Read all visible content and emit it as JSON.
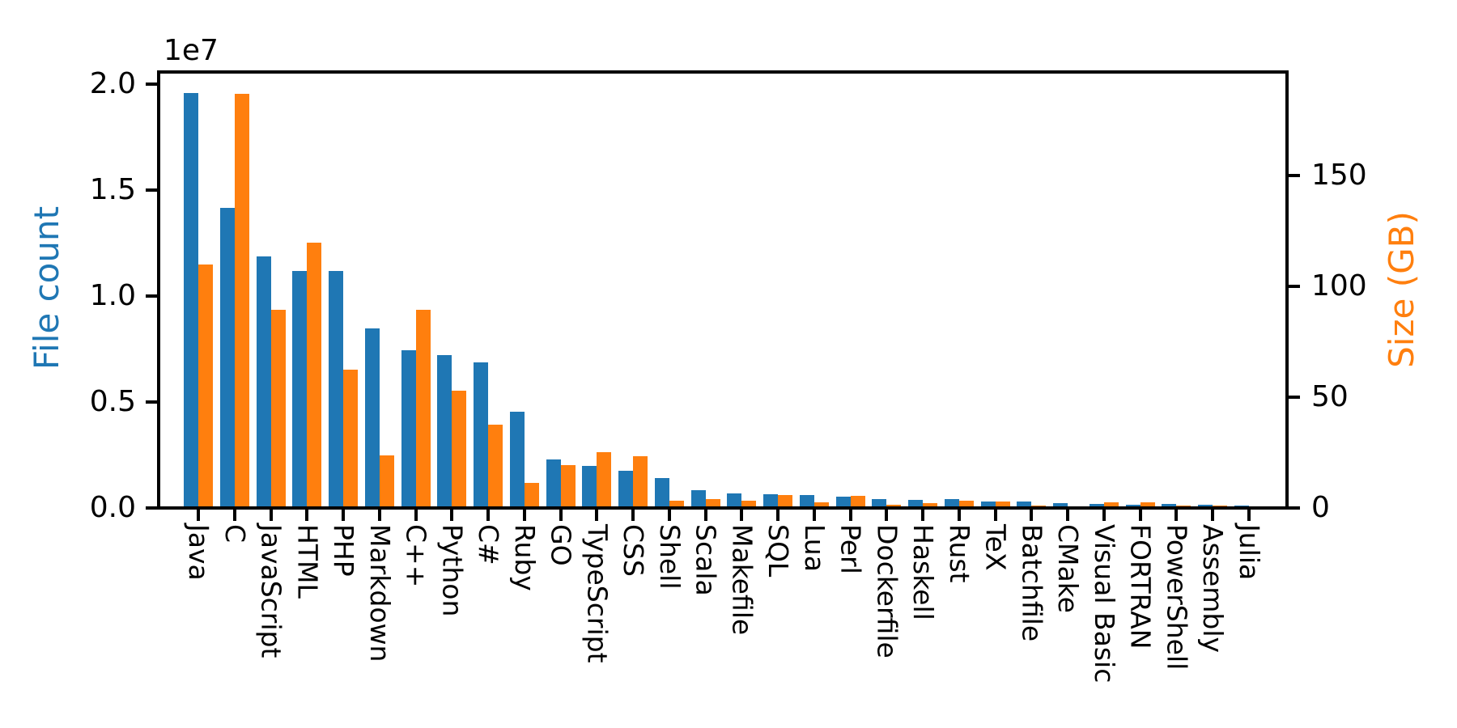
{
  "figure": {
    "background": "#ffffff",
    "offset_label": "1e7",
    "left_axis_label": "File count",
    "right_axis_label": "Size (GB)"
  },
  "chart_data": {
    "type": "bar",
    "title": "",
    "xlabel": "",
    "ylabel_left": "File count",
    "ylabel_right": "Size (GB)",
    "grid": false,
    "legend": false,
    "categories": [
      "Java",
      "C",
      "JavaScript",
      "HTML",
      "PHP",
      "Markdown",
      "C++",
      "Python",
      "C#",
      "Ruby",
      "GO",
      "TypeScript",
      "CSS",
      "Shell",
      "Scala",
      "Makefile",
      "SQL",
      "Lua",
      "Perl",
      "Dockerfile",
      "Haskell",
      "Rust",
      "TeX",
      "Batchfile",
      "CMake",
      "Visual Basic",
      "FORTRAN",
      "PowerShell",
      "Assembly",
      "Julia"
    ],
    "series": [
      {
        "name": "File count",
        "axis": "left",
        "color": "#1f77b4",
        "values": [
          19500000,
          14100000,
          11800000,
          11100000,
          11100000,
          8400000,
          7350000,
          7150000,
          6800000,
          4450000,
          2200000,
          1900000,
          1700000,
          1350000,
          760000,
          610000,
          580000,
          550000,
          460000,
          340000,
          310000,
          330000,
          240000,
          215000,
          150000,
          130000,
          90000,
          130000,
          80000,
          35000
        ]
      },
      {
        "name": "Size (GB)",
        "axis": "right",
        "color": "#ff7f0e",
        "values": [
          109,
          186,
          88.5,
          119,
          61.5,
          23,
          88.5,
          52,
          37,
          10.5,
          18.5,
          24.5,
          22.5,
          2.6,
          3.4,
          2.4,
          5.0,
          1.9,
          4.6,
          0.6,
          1.6,
          2.7,
          2.3,
          0.3,
          0.2,
          1.7,
          1.7,
          0.5,
          0.5,
          0.15
        ]
      }
    ],
    "yticks_left": {
      "labels": [
        "0.0",
        "0.5",
        "1.0",
        "1.5",
        "2.0"
      ],
      "values": [
        0,
        5000000,
        10000000,
        15000000,
        20000000
      ],
      "offset_text": "1e7"
    },
    "yticks_right": {
      "labels": [
        "0",
        "50",
        "100",
        "150"
      ],
      "values": [
        0,
        50,
        100,
        150
      ]
    },
    "ylim_left": [
      0,
      20420000
    ],
    "ylim_right": [
      0,
      195
    ]
  }
}
